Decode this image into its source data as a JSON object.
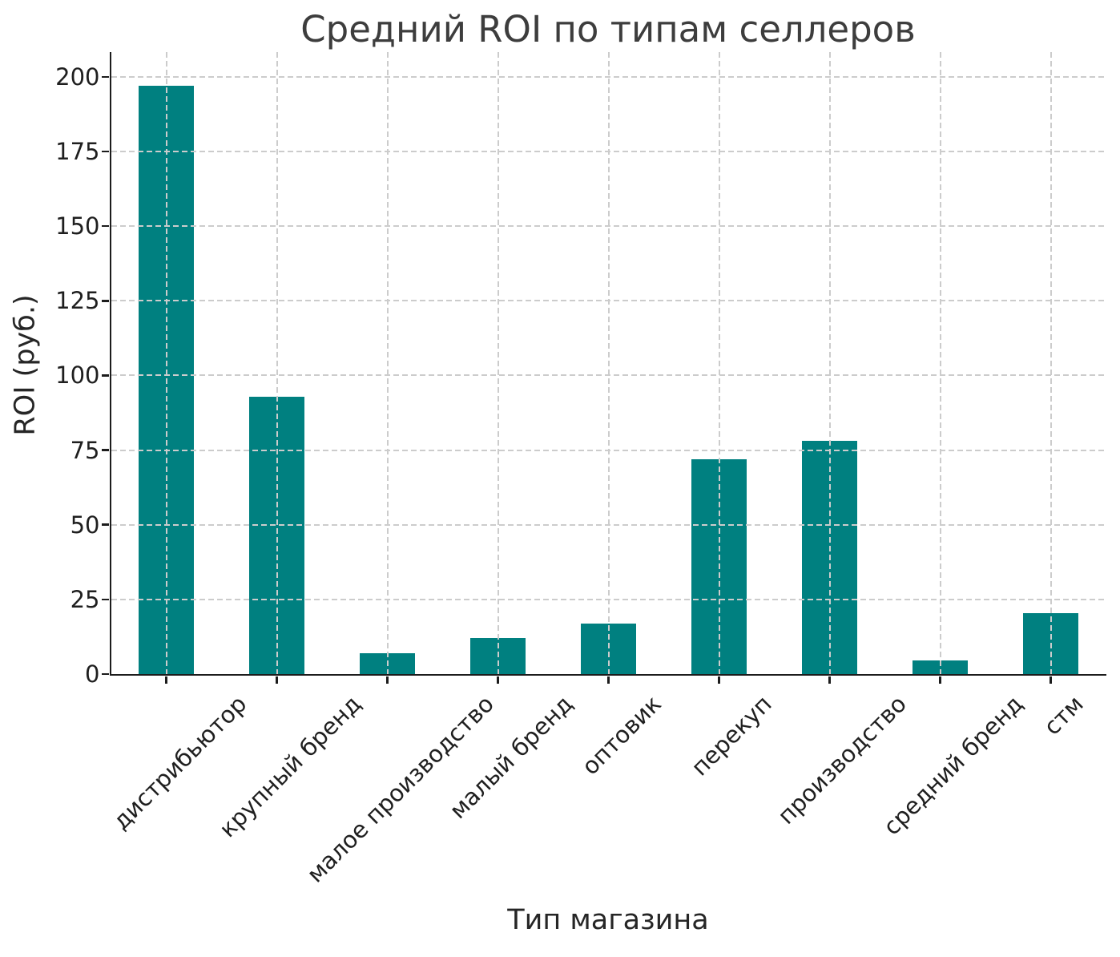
{
  "chart_data": {
    "type": "bar",
    "title": "Средний ROI по типам селлеров",
    "xlabel": "Тип магазина",
    "ylabel": "ROI (руб.)",
    "categories": [
      "дистрибьютор",
      "крупный бренд",
      "малое производство",
      "малый бренд",
      "оптовик",
      "перекуп",
      "производство",
      "средний бренд",
      "стм"
    ],
    "values": [
      197,
      93,
      7,
      12,
      17,
      72,
      78,
      4.5,
      20.5
    ],
    "yticks": [
      0,
      25,
      50,
      75,
      100,
      125,
      150,
      175,
      200
    ],
    "ylim": [
      0,
      208.3
    ],
    "bar_width_ratio": 0.5,
    "grid": true,
    "grid_style": "dashed",
    "legend": "none",
    "colors": {
      "bar": "#008080",
      "gridline": "#cccccc",
      "spine": "#1c1c1c",
      "tick_text": "#1f1f1f",
      "title_text": "#3d3d3d",
      "axis_label_text": "#262626",
      "background": "#ffffff"
    }
  }
}
